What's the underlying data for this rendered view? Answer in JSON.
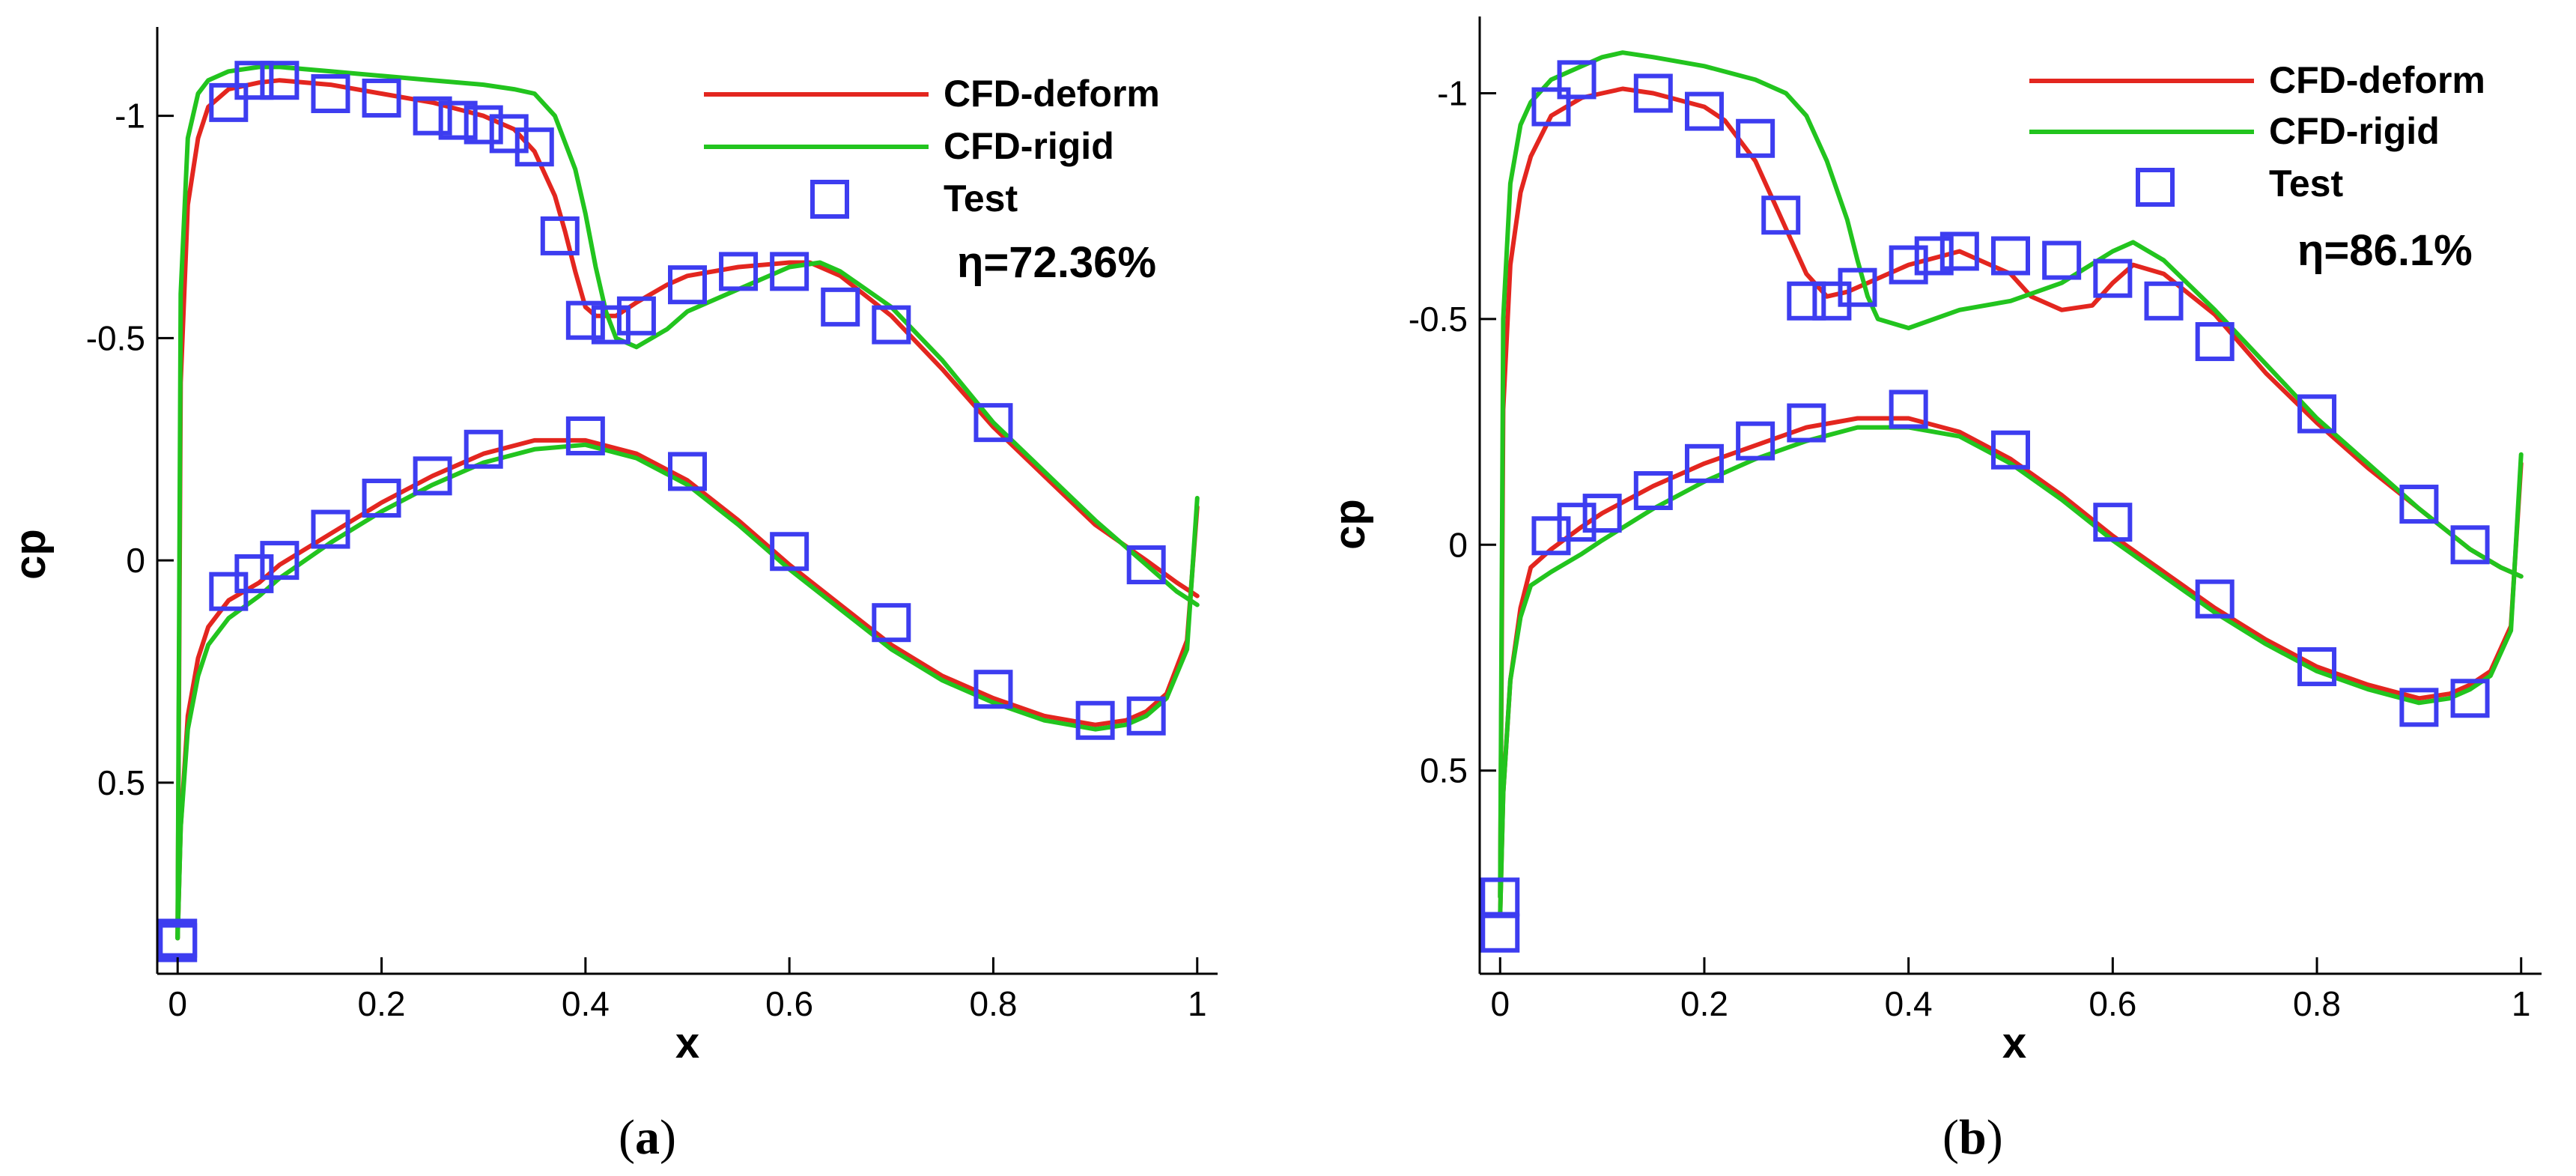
{
  "chart_data": [
    {
      "type": "line",
      "panel": "a",
      "caption_open": "(",
      "caption_letter": "a",
      "caption_close": ")",
      "xlabel": "x",
      "ylabel": "cp",
      "xlim": [
        -0.02,
        1.02
      ],
      "ylim": [
        0.93,
        -1.2
      ],
      "y_inverted": true,
      "xticks": [
        0,
        0.2,
        0.4,
        0.6,
        0.8,
        1
      ],
      "xtick_labels": [
        "0",
        "0.2",
        "0.4",
        "0.6",
        "0.8",
        "1"
      ],
      "yticks": [
        -1,
        -0.5,
        0,
        0.5
      ],
      "ytick_labels": [
        "-1",
        "-0.5",
        "0",
        "0.5"
      ],
      "annotation": "η=72.36%",
      "legend_position": "top-right",
      "series": [
        {
          "name": "CFD-deform",
          "color": "#e3261f",
          "kind": "line",
          "x": [
            0,
            0.003,
            0.01,
            0.02,
            0.03,
            0.05,
            0.08,
            0.1,
            0.15,
            0.2,
            0.25,
            0.3,
            0.33,
            0.35,
            0.37,
            0.38,
            0.39,
            0.4,
            0.41,
            0.43,
            0.45,
            0.48,
            0.5,
            0.55,
            0.6,
            0.62,
            0.65,
            0.7,
            0.75,
            0.8,
            0.85,
            0.9,
            0.95,
            0.98,
            1.0
          ],
          "y": [
            0.85,
            -0.4,
            -0.8,
            -0.95,
            -1.02,
            -1.06,
            -1.075,
            -1.08,
            -1.07,
            -1.05,
            -1.03,
            -1.0,
            -0.97,
            -0.92,
            -0.82,
            -0.74,
            -0.65,
            -0.57,
            -0.55,
            -0.55,
            -0.58,
            -0.62,
            -0.64,
            -0.66,
            -0.67,
            -0.67,
            -0.64,
            -0.55,
            -0.43,
            -0.3,
            -0.19,
            -0.08,
            0.0,
            0.05,
            0.08
          ]
        },
        {
          "name": "CFD-deform",
          "color": "#e3261f",
          "kind": "line",
          "x": [
            0,
            0.003,
            0.01,
            0.02,
            0.03,
            0.05,
            0.08,
            0.1,
            0.15,
            0.2,
            0.25,
            0.3,
            0.35,
            0.4,
            0.45,
            0.5,
            0.55,
            0.6,
            0.65,
            0.7,
            0.75,
            0.8,
            0.85,
            0.9,
            0.93,
            0.95,
            0.97,
            0.99,
            1.0
          ],
          "y": [
            0.85,
            0.6,
            0.35,
            0.22,
            0.15,
            0.09,
            0.05,
            0.01,
            -0.06,
            -0.13,
            -0.19,
            -0.24,
            -0.27,
            -0.27,
            -0.24,
            -0.18,
            -0.09,
            0.01,
            0.1,
            0.19,
            0.26,
            0.31,
            0.35,
            0.37,
            0.36,
            0.34,
            0.3,
            0.18,
            -0.12
          ]
        },
        {
          "name": "CFD-rigid",
          "color": "#22c41e",
          "kind": "line",
          "x": [
            0,
            0.003,
            0.01,
            0.02,
            0.03,
            0.05,
            0.08,
            0.1,
            0.15,
            0.2,
            0.25,
            0.3,
            0.33,
            0.35,
            0.37,
            0.39,
            0.4,
            0.41,
            0.42,
            0.43,
            0.45,
            0.48,
            0.5,
            0.55,
            0.6,
            0.63,
            0.65,
            0.7,
            0.75,
            0.8,
            0.85,
            0.9,
            0.95,
            0.98,
            1.0
          ],
          "y": [
            0.85,
            -0.6,
            -0.95,
            -1.05,
            -1.08,
            -1.1,
            -1.11,
            -1.11,
            -1.1,
            -1.09,
            -1.08,
            -1.07,
            -1.06,
            -1.05,
            -1.0,
            -0.88,
            -0.78,
            -0.66,
            -0.56,
            -0.5,
            -0.48,
            -0.52,
            -0.56,
            -0.61,
            -0.66,
            -0.67,
            -0.65,
            -0.57,
            -0.45,
            -0.31,
            -0.2,
            -0.09,
            0.01,
            0.07,
            0.1
          ]
        },
        {
          "name": "CFD-rigid",
          "color": "#22c41e",
          "kind": "line",
          "x": [
            0,
            0.003,
            0.01,
            0.02,
            0.03,
            0.05,
            0.08,
            0.1,
            0.15,
            0.2,
            0.25,
            0.3,
            0.35,
            0.4,
            0.45,
            0.5,
            0.55,
            0.6,
            0.65,
            0.7,
            0.75,
            0.8,
            0.85,
            0.9,
            0.93,
            0.95,
            0.97,
            0.99,
            1.0
          ],
          "y": [
            0.85,
            0.6,
            0.38,
            0.26,
            0.19,
            0.13,
            0.08,
            0.04,
            -0.04,
            -0.11,
            -0.17,
            -0.22,
            -0.25,
            -0.26,
            -0.23,
            -0.17,
            -0.08,
            0.02,
            0.11,
            0.2,
            0.27,
            0.32,
            0.36,
            0.38,
            0.37,
            0.35,
            0.31,
            0.2,
            -0.14
          ]
        },
        {
          "name": "Test",
          "color": "#3d3df0",
          "kind": "marker",
          "x": [
            0,
            0,
            0.05,
            0.075,
            0.1,
            0.15,
            0.2,
            0.25,
            0.275,
            0.3,
            0.325,
            0.35,
            0.375,
            0.4,
            0.425,
            0.45,
            0.5,
            0.55,
            0.6,
            0.65,
            0.7,
            0.8,
            0.95,
            0.05,
            0.075,
            0.1,
            0.15,
            0.2,
            0.25,
            0.3,
            0.4,
            0.5,
            0.6,
            0.7,
            0.8,
            0.9,
            0.95
          ],
          "y": [
            0.85,
            0.86,
            -1.03,
            -1.08,
            -1.08,
            -1.05,
            -1.04,
            -1.0,
            -0.99,
            -0.98,
            -0.96,
            -0.93,
            -0.73,
            -0.54,
            -0.53,
            -0.55,
            -0.62,
            -0.65,
            -0.65,
            -0.57,
            -0.53,
            -0.31,
            0.01,
            0.07,
            0.03,
            0.0,
            -0.07,
            -0.14,
            -0.19,
            -0.25,
            -0.28,
            -0.2,
            -0.02,
            0.14,
            0.29,
            0.36,
            0.35
          ]
        }
      ]
    },
    {
      "type": "line",
      "panel": "b",
      "caption_open": "(",
      "caption_letter": "b",
      "caption_close": ")",
      "xlabel": "x",
      "ylabel": "cp",
      "xlim": [
        -0.02,
        1.02
      ],
      "ylim": [
        0.95,
        -1.17
      ],
      "y_inverted": true,
      "xticks": [
        0,
        0.2,
        0.4,
        0.6,
        0.8,
        1
      ],
      "xtick_labels": [
        "0",
        "0.2",
        "0.4",
        "0.6",
        "0.8",
        "1"
      ],
      "yticks": [
        -1,
        -0.5,
        0,
        0.5
      ],
      "ytick_labels": [
        "-1",
        "-0.5",
        "0",
        "0.5"
      ],
      "annotation": "η=86.1%",
      "legend_position": "top-right",
      "series": [
        {
          "name": "CFD-deform",
          "color": "#e3261f",
          "kind": "line",
          "x": [
            0,
            0.003,
            0.01,
            0.02,
            0.03,
            0.05,
            0.08,
            0.1,
            0.12,
            0.15,
            0.2,
            0.22,
            0.25,
            0.27,
            0.28,
            0.3,
            0.32,
            0.34,
            0.36,
            0.4,
            0.45,
            0.5,
            0.52,
            0.55,
            0.58,
            0.6,
            0.62,
            0.65,
            0.7,
            0.75,
            0.8,
            0.85,
            0.9,
            0.95,
            0.98,
            1.0
          ],
          "y": [
            0.78,
            -0.3,
            -0.62,
            -0.78,
            -0.86,
            -0.95,
            -0.99,
            -1.0,
            -1.01,
            -1.0,
            -0.97,
            -0.94,
            -0.85,
            -0.75,
            -0.7,
            -0.6,
            -0.55,
            -0.56,
            -0.58,
            -0.62,
            -0.65,
            -0.6,
            -0.55,
            -0.52,
            -0.53,
            -0.58,
            -0.62,
            -0.6,
            -0.51,
            -0.38,
            -0.27,
            -0.17,
            -0.08,
            0.01,
            0.05,
            0.07
          ]
        },
        {
          "name": "CFD-deform",
          "color": "#e3261f",
          "kind": "line",
          "x": [
            0,
            0.003,
            0.01,
            0.02,
            0.03,
            0.05,
            0.08,
            0.1,
            0.15,
            0.2,
            0.25,
            0.3,
            0.35,
            0.4,
            0.45,
            0.5,
            0.55,
            0.6,
            0.65,
            0.7,
            0.75,
            0.8,
            0.85,
            0.9,
            0.93,
            0.95,
            0.97,
            0.99,
            1.0
          ],
          "y": [
            0.82,
            0.55,
            0.3,
            0.14,
            0.05,
            0.01,
            -0.04,
            -0.07,
            -0.13,
            -0.18,
            -0.22,
            -0.26,
            -0.28,
            -0.28,
            -0.25,
            -0.19,
            -0.11,
            -0.02,
            0.06,
            0.14,
            0.21,
            0.27,
            0.31,
            0.34,
            0.33,
            0.31,
            0.28,
            0.18,
            -0.18
          ]
        },
        {
          "name": "CFD-rigid",
          "color": "#22c41e",
          "kind": "line",
          "x": [
            0,
            0.003,
            0.01,
            0.02,
            0.03,
            0.05,
            0.08,
            0.1,
            0.12,
            0.15,
            0.2,
            0.25,
            0.28,
            0.3,
            0.32,
            0.34,
            0.35,
            0.36,
            0.37,
            0.4,
            0.45,
            0.5,
            0.55,
            0.6,
            0.62,
            0.65,
            0.7,
            0.75,
            0.8,
            0.85,
            0.9,
            0.95,
            0.98,
            1.0
          ],
          "y": [
            0.78,
            -0.5,
            -0.8,
            -0.93,
            -0.98,
            -1.03,
            -1.06,
            -1.08,
            -1.09,
            -1.08,
            -1.06,
            -1.03,
            -1.0,
            -0.95,
            -0.85,
            -0.72,
            -0.63,
            -0.55,
            -0.5,
            -0.48,
            -0.52,
            -0.54,
            -0.58,
            -0.65,
            -0.67,
            -0.63,
            -0.52,
            -0.4,
            -0.28,
            -0.18,
            -0.08,
            0.01,
            0.05,
            0.07
          ]
        },
        {
          "name": "CFD-rigid",
          "color": "#22c41e",
          "kind": "line",
          "x": [
            0,
            0.003,
            0.01,
            0.02,
            0.03,
            0.05,
            0.08,
            0.1,
            0.15,
            0.2,
            0.25,
            0.3,
            0.35,
            0.4,
            0.45,
            0.5,
            0.55,
            0.6,
            0.65,
            0.7,
            0.75,
            0.8,
            0.85,
            0.9,
            0.93,
            0.95,
            0.97,
            0.99,
            1.0
          ],
          "y": [
            0.82,
            0.55,
            0.3,
            0.16,
            0.09,
            0.06,
            0.02,
            -0.01,
            -0.08,
            -0.14,
            -0.19,
            -0.23,
            -0.26,
            -0.26,
            -0.24,
            -0.18,
            -0.1,
            -0.01,
            0.07,
            0.15,
            0.22,
            0.28,
            0.32,
            0.35,
            0.34,
            0.32,
            0.29,
            0.19,
            -0.2
          ]
        },
        {
          "name": "Test",
          "color": "#3d3df0",
          "kind": "marker",
          "x": [
            0,
            0,
            0.05,
            0.075,
            0.15,
            0.2,
            0.25,
            0.275,
            0.3,
            0.325,
            0.35,
            0.4,
            0.425,
            0.45,
            0.5,
            0.55,
            0.6,
            0.65,
            0.7,
            0.8,
            0.9,
            0.95,
            0.05,
            0.075,
            0.1,
            0.15,
            0.2,
            0.25,
            0.3,
            0.4,
            0.5,
            0.6,
            0.7,
            0.8,
            0.9,
            0.95
          ],
          "y": [
            0.78,
            0.86,
            -0.97,
            -1.03,
            -1.0,
            -0.96,
            -0.9,
            -0.73,
            -0.54,
            -0.54,
            -0.57,
            -0.62,
            -0.64,
            -0.65,
            -0.64,
            -0.63,
            -0.59,
            -0.54,
            -0.45,
            -0.29,
            -0.09,
            -0.0,
            -0.02,
            -0.05,
            -0.07,
            -0.12,
            -0.18,
            -0.23,
            -0.27,
            -0.3,
            -0.21,
            -0.05,
            0.12,
            0.27,
            0.36,
            0.34
          ]
        }
      ]
    }
  ]
}
